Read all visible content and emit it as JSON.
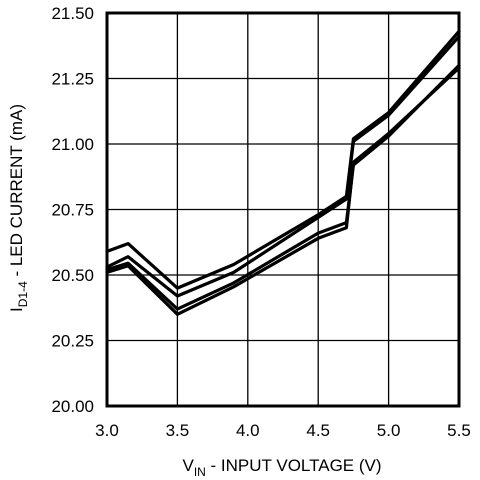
{
  "chart_data": {
    "type": "line",
    "title": "",
    "xlabel": {
      "main": "V",
      "sub": "IN",
      "rest": " - INPUT VOLTAGE (V)"
    },
    "ylabel": {
      "main": "I",
      "sub": "D1-4",
      "rest": " - LED CURRENT (mA)"
    },
    "xlim": [
      3.0,
      5.5
    ],
    "ylim": [
      20.0,
      21.5
    ],
    "xticks": [
      3.0,
      3.5,
      4.0,
      4.5,
      5.0,
      5.5
    ],
    "yticks": [
      20.0,
      20.25,
      20.5,
      20.75,
      21.0,
      21.25,
      21.5
    ],
    "xtick_labels": [
      "3.0",
      "3.5",
      "4.0",
      "4.5",
      "5.0",
      "5.5"
    ],
    "ytick_labels": [
      "20.00",
      "20.25",
      "20.50",
      "20.75",
      "21.00",
      "21.25",
      "21.50"
    ],
    "grid": true,
    "legend": "none",
    "line_color": "#000000",
    "series": [
      {
        "x": [
          3.0,
          3.15,
          3.5,
          3.9,
          4.5,
          4.7,
          4.75,
          5.0,
          5.5
        ],
        "y": [
          20.59,
          20.62,
          20.45,
          20.54,
          20.73,
          20.8,
          21.02,
          21.12,
          21.43
        ]
      },
      {
        "x": [
          3.0,
          3.15,
          3.5,
          3.9,
          4.5,
          4.7,
          4.75,
          5.0,
          5.5
        ],
        "y": [
          20.53,
          20.57,
          20.42,
          20.51,
          20.72,
          20.79,
          21.01,
          21.11,
          21.41
        ]
      },
      {
        "x": [
          3.0,
          3.15,
          3.5,
          3.9,
          4.5,
          4.7,
          4.75,
          5.0,
          5.5
        ],
        "y": [
          20.52,
          20.545,
          20.37,
          20.47,
          20.66,
          20.7,
          20.92,
          21.03,
          21.3
        ]
      },
      {
        "x": [
          3.0,
          3.15,
          3.5,
          3.9,
          4.5,
          4.7,
          4.75,
          5.0,
          5.5
        ],
        "y": [
          20.51,
          20.535,
          20.35,
          20.455,
          20.64,
          20.68,
          20.93,
          21.04,
          21.29
        ]
      }
    ]
  }
}
